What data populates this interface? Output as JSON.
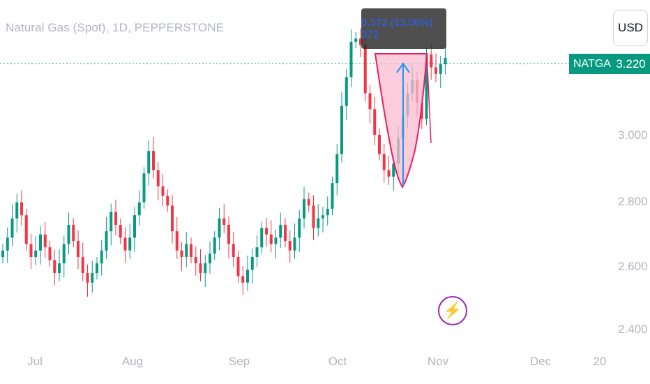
{
  "header": {
    "title": "Natural Gas (Spot), 1D, PEPPERSTONE",
    "currency_button": "USD"
  },
  "last_price": {
    "symbol": "NATGAS",
    "value": "3.220"
  },
  "measure": {
    "label": "0.372 (13.06%) 372",
    "from": 2.848,
    "to": 3.22
  },
  "icons": {
    "event": "lightning-bolt-icon"
  },
  "colors": {
    "up": "#089981",
    "down": "#f23645",
    "pattern_fill": "#f8bbd0",
    "pattern_stroke": "#e91e63",
    "arrow": "#2196f3",
    "price_line": "#089981"
  },
  "chart_data": {
    "type": "candlestick",
    "title": "Natural Gas (Spot), 1D, PEPPERSTONE",
    "ylim": [
      2.4,
      3.4
    ],
    "yticks": [
      "3.000",
      "2.800",
      "2.600",
      "2.400"
    ],
    "yticks_values": [
      3.0,
      2.8,
      2.6,
      2.4
    ],
    "xticks": [
      "Jul",
      "Aug",
      "Sep",
      "Oct",
      "Nov",
      "Dec",
      "20"
    ],
    "xticks_index": [
      7,
      29,
      50,
      71,
      92,
      113,
      126
    ],
    "grid": false,
    "last_price": 3.22,
    "closes": [
      2.62,
      2.66,
      2.72,
      2.77,
      2.73,
      2.64,
      2.6,
      2.62,
      2.67,
      2.63,
      2.59,
      2.55,
      2.58,
      2.64,
      2.7,
      2.65,
      2.6,
      2.55,
      2.52,
      2.55,
      2.58,
      2.62,
      2.68,
      2.74,
      2.7,
      2.66,
      2.62,
      2.66,
      2.73,
      2.77,
      2.86,
      2.93,
      2.87,
      2.82,
      2.79,
      2.76,
      2.68,
      2.62,
      2.6,
      2.64,
      2.6,
      2.58,
      2.55,
      2.58,
      2.61,
      2.66,
      2.72,
      2.7,
      2.64,
      2.6,
      2.54,
      2.52,
      2.56,
      2.6,
      2.63,
      2.69,
      2.67,
      2.64,
      2.66,
      2.7,
      2.65,
      2.62,
      2.66,
      2.72,
      2.78,
      2.76,
      2.69,
      2.72,
      2.73,
      2.75,
      2.83,
      2.92,
      3.07,
      3.16,
      3.27,
      3.28,
      3.26,
      3.11,
      3.06,
      2.98,
      2.92,
      2.87,
      2.85,
      2.89,
      2.97,
      3.04,
      3.11,
      3.15,
      3.08,
      3.03,
      3.23,
      3.19,
      3.17,
      3.2,
      3.22
    ]
  }
}
